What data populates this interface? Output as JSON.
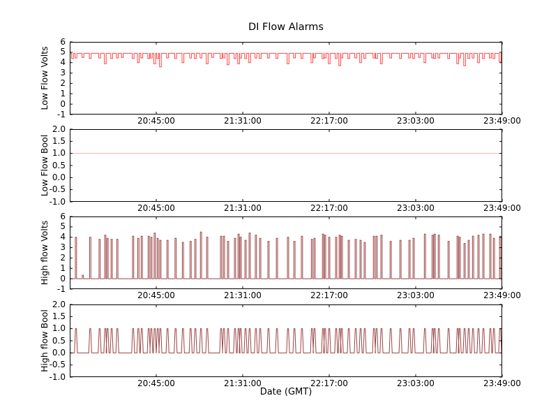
{
  "title": "DI Flow Alarms",
  "xlabel": "Date (GMT)",
  "colors": {
    "low_flow_volts": "#ff4444",
    "low_flow_bool": "#ffaaaa",
    "high_flow": "#9b4343",
    "axis": "#000000",
    "background": "#ffffff"
  },
  "x_axis": {
    "tick_labels": [
      "20:45:00",
      "21:31:00",
      "22:17:00",
      "23:03:00",
      "23:49:00"
    ],
    "tick_minutes": [
      46,
      92,
      138,
      184,
      230
    ],
    "range_minutes": [
      0,
      230
    ]
  },
  "chart_data": [
    {
      "type": "line",
      "name": "low_flow_volts",
      "ylabel": "Low Flow Volts",
      "color_key": "low_flow_volts",
      "ylim": [
        -1,
        6
      ],
      "ytick_values": [
        6,
        5,
        4,
        3,
        2,
        1,
        0,
        -1
      ],
      "ytick_labels": [
        "6",
        "5",
        "4",
        "3",
        "2",
        "1",
        "0",
        "-1"
      ],
      "baseline": 4.9,
      "dips": [
        [
          1.5,
          4.4
        ],
        [
          3.3,
          4.45
        ],
        [
          7.0,
          4.5
        ],
        [
          10.9,
          4.4
        ],
        [
          15.9,
          4.45
        ],
        [
          18.9,
          3.9
        ],
        [
          22.3,
          4.4
        ],
        [
          25.3,
          4.45
        ],
        [
          28.0,
          4.5
        ],
        [
          33.7,
          4.4
        ],
        [
          36.5,
          4.0
        ],
        [
          38.3,
          4.45
        ],
        [
          42.0,
          4.4
        ],
        [
          43.4,
          4.45
        ],
        [
          45.2,
          3.9
        ],
        [
          46.8,
          4.4
        ],
        [
          48.2,
          3.6
        ],
        [
          52.0,
          4.45
        ],
        [
          56.3,
          4.4
        ],
        [
          60.2,
          4.0
        ],
        [
          64.3,
          4.45
        ],
        [
          66.8,
          4.4
        ],
        [
          69.8,
          4.45
        ],
        [
          73.1,
          3.9
        ],
        [
          76.0,
          4.5
        ],
        [
          80.5,
          4.4
        ],
        [
          82.0,
          4.45
        ],
        [
          84.2,
          3.8
        ],
        [
          87.9,
          4.4
        ],
        [
          89.8,
          3.9
        ],
        [
          90.9,
          4.45
        ],
        [
          93.5,
          4.4
        ],
        [
          95.7,
          4.0
        ],
        [
          99.0,
          4.45
        ],
        [
          101.3,
          4.4
        ],
        [
          105.7,
          4.45
        ],
        [
          110.2,
          4.4
        ],
        [
          116.1,
          3.9
        ],
        [
          119.5,
          4.45
        ],
        [
          123.5,
          4.4
        ],
        [
          128.8,
          4.0
        ],
        [
          130.2,
          4.45
        ],
        [
          134.7,
          4.4
        ],
        [
          135.8,
          4.45
        ],
        [
          138.0,
          3.9
        ],
        [
          141.7,
          4.4
        ],
        [
          143.6,
          3.7
        ],
        [
          144.7,
          4.45
        ],
        [
          148.4,
          4.4
        ],
        [
          152.1,
          4.45
        ],
        [
          154.7,
          4.0
        ],
        [
          156.9,
          4.4
        ],
        [
          161.8,
          4.45
        ],
        [
          163.2,
          4.4
        ],
        [
          165.8,
          3.9
        ],
        [
          170.7,
          4.45
        ],
        [
          175.9,
          4.4
        ],
        [
          180.7,
          4.45
        ],
        [
          182.9,
          4.4
        ],
        [
          186.0,
          4.5
        ],
        [
          188.9,
          4.0
        ],
        [
          193.0,
          4.45
        ],
        [
          194.1,
          4.4
        ],
        [
          196.3,
          4.45
        ],
        [
          201.5,
          4.4
        ],
        [
          206.3,
          3.9
        ],
        [
          207.4,
          4.45
        ],
        [
          210.0,
          3.7
        ],
        [
          212.2,
          4.4
        ],
        [
          214.5,
          4.45
        ],
        [
          217.4,
          4.0
        ],
        [
          220.0,
          4.4
        ],
        [
          223.7,
          4.45
        ],
        [
          225.6,
          4.4
        ],
        [
          228.9,
          4.1
        ]
      ]
    },
    {
      "type": "line",
      "name": "low_flow_bool",
      "ylabel": "Low Flow Bool",
      "color_key": "low_flow_bool",
      "ylim": [
        -1,
        2
      ],
      "ytick_values": [
        2,
        1.5,
        1,
        0.5,
        0,
        -0.5,
        -1
      ],
      "ytick_labels": [
        "2.0",
        "1.5",
        "1.0",
        "0.5",
        "0.0",
        "-0.5",
        "-1.0"
      ],
      "constant": 1.0
    },
    {
      "type": "line",
      "name": "high_flow_volts",
      "ylabel": "High flow Volts",
      "color_key": "high_flow",
      "ylim": [
        -1,
        6
      ],
      "ytick_values": [
        6,
        5,
        4,
        3,
        2,
        1,
        0,
        -1
      ],
      "ytick_labels": [
        "6",
        "5",
        "4",
        "3",
        "2",
        "1",
        "0",
        "-1"
      ],
      "baseline": 0,
      "pulses": [
        [
          3.3,
          4.0
        ],
        [
          7.0,
          0.35
        ],
        [
          10.9,
          4.0
        ],
        [
          15.9,
          3.8
        ],
        [
          18.9,
          4.2
        ],
        [
          20.1,
          3.9
        ],
        [
          22.3,
          3.8
        ],
        [
          25.3,
          3.8
        ],
        [
          33.7,
          4.1
        ],
        [
          36.5,
          3.9
        ],
        [
          38.3,
          4.1
        ],
        [
          42.0,
          4.1
        ],
        [
          43.4,
          4.0
        ],
        [
          45.2,
          4.4
        ],
        [
          46.8,
          3.9
        ],
        [
          48.2,
          3.7
        ],
        [
          52.0,
          3.7
        ],
        [
          56.3,
          3.9
        ],
        [
          60.2,
          3.5
        ],
        [
          64.3,
          3.6
        ],
        [
          66.8,
          3.8
        ],
        [
          69.8,
          4.5
        ],
        [
          73.1,
          4.0
        ],
        [
          80.5,
          4.1
        ],
        [
          82.0,
          4.1
        ],
        [
          84.2,
          3.6
        ],
        [
          87.9,
          3.9
        ],
        [
          89.8,
          4.3
        ],
        [
          90.9,
          4.0
        ],
        [
          93.5,
          3.7
        ],
        [
          95.7,
          4.4
        ],
        [
          99.0,
          4.2
        ],
        [
          101.3,
          3.9
        ],
        [
          105.7,
          3.6
        ],
        [
          110.2,
          3.9
        ],
        [
          116.1,
          4.0
        ],
        [
          119.5,
          3.6
        ],
        [
          123.5,
          4.1
        ],
        [
          128.8,
          3.8
        ],
        [
          130.2,
          3.9
        ],
        [
          134.7,
          4.3
        ],
        [
          135.8,
          4.2
        ],
        [
          138.0,
          4.0
        ],
        [
          141.7,
          4.0
        ],
        [
          143.6,
          4.2
        ],
        [
          144.7,
          4.1
        ],
        [
          148.4,
          3.7
        ],
        [
          152.1,
          3.8
        ],
        [
          154.7,
          3.7
        ],
        [
          156.9,
          3.5
        ],
        [
          161.8,
          4.1
        ],
        [
          163.2,
          4.1
        ],
        [
          165.8,
          4.2
        ],
        [
          170.7,
          3.6
        ],
        [
          175.9,
          3.7
        ],
        [
          180.7,
          3.7
        ],
        [
          182.9,
          3.9
        ],
        [
          188.9,
          4.3
        ],
        [
          193.0,
          4.2
        ],
        [
          194.1,
          4.3
        ],
        [
          196.3,
          4.2
        ],
        [
          201.5,
          3.6
        ],
        [
          206.3,
          4.1
        ],
        [
          207.4,
          4.0
        ],
        [
          210.0,
          3.4
        ],
        [
          212.2,
          3.7
        ],
        [
          214.5,
          4.1
        ],
        [
          217.4,
          4.2
        ],
        [
          220.0,
          4.3
        ],
        [
          223.7,
          4.3
        ],
        [
          225.6,
          3.9
        ],
        [
          228.9,
          4.1
        ]
      ]
    },
    {
      "type": "line",
      "name": "high_flow_bool",
      "ylabel": "High flow Bool",
      "color_key": "high_flow",
      "ylim": [
        -1,
        2
      ],
      "ytick_values": [
        2,
        1.5,
        1,
        0.5,
        0,
        -0.5,
        -1
      ],
      "ytick_labels": [
        "2.0",
        "1.5",
        "1.0",
        "0.5",
        "0.0",
        "-0.5",
        "-1.0"
      ],
      "baseline": 0,
      "level": 1.0,
      "pulse_times": [
        3.3,
        10.9,
        15.9,
        18.9,
        20.1,
        22.3,
        25.3,
        33.7,
        36.5,
        38.3,
        42.0,
        43.4,
        45.2,
        46.8,
        48.2,
        52.0,
        56.3,
        60.2,
        64.3,
        66.8,
        69.8,
        73.1,
        80.5,
        82.0,
        84.2,
        87.9,
        89.8,
        90.9,
        93.5,
        95.7,
        99.0,
        101.3,
        105.7,
        110.2,
        116.1,
        119.5,
        123.5,
        128.8,
        130.2,
        134.7,
        135.8,
        138.0,
        141.7,
        143.6,
        144.7,
        148.4,
        152.1,
        154.7,
        156.9,
        161.8,
        163.2,
        165.8,
        170.7,
        175.9,
        180.7,
        182.9,
        188.9,
        193.0,
        194.1,
        196.3,
        201.5,
        206.3,
        207.4,
        210.0,
        212.2,
        214.5,
        217.4,
        220.0,
        223.7,
        225.6,
        228.9
      ]
    }
  ]
}
